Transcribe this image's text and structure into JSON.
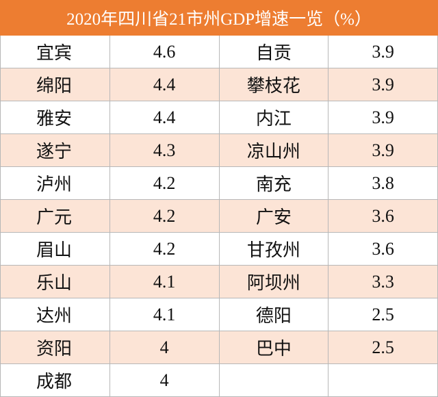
{
  "header": {
    "title": "2020年四川省21市州GDP增速一览（%）"
  },
  "table": {
    "rows": [
      [
        "宜宾",
        "4.6",
        "自贡",
        "3.9"
      ],
      [
        "绵阳",
        "4.4",
        "攀枝花",
        "3.9"
      ],
      [
        "雅安",
        "4.4",
        "内江",
        "3.9"
      ],
      [
        "遂宁",
        "4.3",
        "凉山州",
        "3.9"
      ],
      [
        "泸州",
        "4.2",
        "南充",
        "3.8"
      ],
      [
        "广元",
        "4.2",
        "广安",
        "3.6"
      ],
      [
        "眉山",
        "4.2",
        "甘孜州",
        "3.6"
      ],
      [
        "乐山",
        "4.1",
        "阿坝州",
        "3.3"
      ],
      [
        "达州",
        "4.1",
        "德阳",
        "2.5"
      ],
      [
        "资阳",
        "4",
        "巴中",
        "2.5"
      ],
      [
        "成都",
        "4"
      ]
    ]
  }
}
